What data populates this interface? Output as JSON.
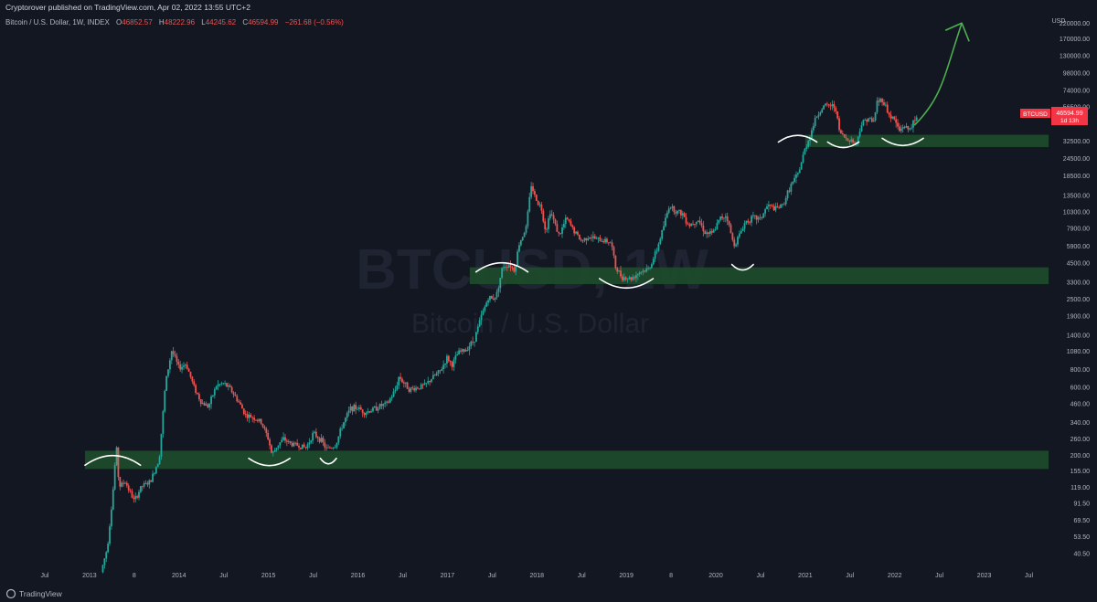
{
  "publish_line": "Cryptorover published on TradingView.com, Apr 02, 2022 13:55 UTC+2",
  "symbol_line": {
    "name": "Bitcoin / U.S. Dollar, 1W, INDEX",
    "open_label": "O",
    "open": "46852.57",
    "high_label": "H",
    "high": "48222.96",
    "low_label": "L",
    "low": "44245.62",
    "close_label": "C",
    "close": "46594.99",
    "change": "−261.68 (−0.56%)"
  },
  "watermark": {
    "symbol": "BTCUSD, 1W",
    "description": "Bitcoin / U.S. Dollar"
  },
  "price_tag": {
    "symbol": "BTCUSD",
    "price": "46594.99",
    "countdown": "1d 13h"
  },
  "footer": {
    "brand": "TradingView"
  },
  "colors": {
    "up": "#26a69a",
    "down": "#ef5350",
    "zone": "#1e4d2b",
    "arrow": "#4caf50",
    "annotation": "#ffffff",
    "background": "#131722",
    "tag": "#f23645"
  },
  "chart_data": {
    "type": "candlestick",
    "scale": "log",
    "currency": "USD",
    "y_ticks": [
      {
        "label": "220000.00",
        "value": 220000
      },
      {
        "label": "170000.00",
        "value": 170000
      },
      {
        "label": "130000.00",
        "value": 130000
      },
      {
        "label": "98000.00",
        "value": 98000
      },
      {
        "label": "74000.00",
        "value": 74000
      },
      {
        "label": "56500.00",
        "value": 56500
      },
      {
        "label": "32500.00",
        "value": 32500
      },
      {
        "label": "24500.00",
        "value": 24500
      },
      {
        "label": "18500.00",
        "value": 18500
      },
      {
        "label": "13500.00",
        "value": 13500
      },
      {
        "label": "10300.00",
        "value": 10300
      },
      {
        "label": "7900.00",
        "value": 7900
      },
      {
        "label": "5900.00",
        "value": 5900
      },
      {
        "label": "4500.00",
        "value": 4500
      },
      {
        "label": "3300.00",
        "value": 3300
      },
      {
        "label": "2500.00",
        "value": 2500
      },
      {
        "label": "1900.00",
        "value": 1900
      },
      {
        "label": "1400.00",
        "value": 1400
      },
      {
        "label": "1080.00",
        "value": 1080
      },
      {
        "label": "800.00",
        "value": 800
      },
      {
        "label": "600.00",
        "value": 600
      },
      {
        "label": "460.00",
        "value": 460
      },
      {
        "label": "340.00",
        "value": 340
      },
      {
        "label": "260.00",
        "value": 260
      },
      {
        "label": "200.00",
        "value": 200
      },
      {
        "label": "155.00",
        "value": 155
      },
      {
        "label": "119.00",
        "value": 119
      },
      {
        "label": "91.50",
        "value": 91.5
      },
      {
        "label": "69.50",
        "value": 69.5
      },
      {
        "label": "53.50",
        "value": 53.5
      },
      {
        "label": "40.50",
        "value": 40.5
      }
    ],
    "x_ticks": [
      {
        "label": "Jul",
        "t": 2012.5
      },
      {
        "label": "2013",
        "t": 2013.0
      },
      {
        "label": "8",
        "t": 2013.5
      },
      {
        "label": "2014",
        "t": 2014.0
      },
      {
        "label": "Jul",
        "t": 2014.5
      },
      {
        "label": "2015",
        "t": 2015.0
      },
      {
        "label": "Jul",
        "t": 2015.5
      },
      {
        "label": "2016",
        "t": 2016.0
      },
      {
        "label": "Jul",
        "t": 2016.5
      },
      {
        "label": "2017",
        "t": 2017.0
      },
      {
        "label": "Jul",
        "t": 2017.5
      },
      {
        "label": "2018",
        "t": 2018.0
      },
      {
        "label": "Jul",
        "t": 2018.5
      },
      {
        "label": "2019",
        "t": 2019.0
      },
      {
        "label": "8",
        "t": 2019.5
      },
      {
        "label": "2020",
        "t": 2020.0
      },
      {
        "label": "Jul",
        "t": 2020.5
      },
      {
        "label": "2021",
        "t": 2021.0
      },
      {
        "label": "Jul",
        "t": 2021.5
      },
      {
        "label": "2022",
        "t": 2022.0
      },
      {
        "label": "Jul",
        "t": 2022.5
      },
      {
        "label": "2023",
        "t": 2023.0
      },
      {
        "label": "Jul",
        "t": 2023.5
      }
    ],
    "x_range": [
      2012.0,
      2023.75
    ],
    "y_range": [
      33,
      260000
    ],
    "support_zones": [
      {
        "from_t": 2012.95,
        "to_t": 2023.72,
        "low": 160,
        "high": 215
      },
      {
        "from_t": 2017.25,
        "to_t": 2023.72,
        "low": 3200,
        "high": 4200
      },
      {
        "from_t": 2021.0,
        "to_t": 2023.72,
        "low": 29500,
        "high": 36000
      }
    ],
    "annotations": [
      {
        "shape": "arc-top",
        "t1": 2012.95,
        "t2": 2013.57,
        "price": 170
      },
      {
        "shape": "arc-bottom",
        "t1": 2014.78,
        "t2": 2015.24,
        "price": 190
      },
      {
        "shape": "arc-bottom",
        "t1": 2015.58,
        "t2": 2015.76,
        "price": 190
      },
      {
        "shape": "arc-top",
        "t1": 2017.32,
        "t2": 2017.9,
        "price": 3900
      },
      {
        "shape": "arc-bottom",
        "t1": 2018.7,
        "t2": 2019.3,
        "price": 3500
      },
      {
        "shape": "arc-bottom",
        "t1": 2020.18,
        "t2": 2020.42,
        "price": 4400
      },
      {
        "shape": "arc-top",
        "t1": 2020.7,
        "t2": 2021.13,
        "price": 32000
      },
      {
        "shape": "arc-bottom",
        "t1": 2021.25,
        "t2": 2021.6,
        "price": 32000
      },
      {
        "shape": "arc-bottom",
        "t1": 2021.86,
        "t2": 2022.32,
        "price": 34000
      }
    ],
    "projection_arrow": {
      "from": {
        "t": 2022.22,
        "price": 42000
      },
      "to": {
        "t": 2022.75,
        "price": 220000
      }
    },
    "price_path": [
      [
        2013.13,
        30
      ],
      [
        2013.2,
        45
      ],
      [
        2013.26,
        105
      ],
      [
        2013.3,
        235
      ],
      [
        2013.33,
        120
      ],
      [
        2013.4,
        130
      ],
      [
        2013.5,
        95
      ],
      [
        2013.58,
        120
      ],
      [
        2013.68,
        130
      ],
      [
        2013.78,
        190
      ],
      [
        2013.85,
        650
      ],
      [
        2013.92,
        1100
      ],
      [
        2014.0,
        820
      ],
      [
        2014.08,
        880
      ],
      [
        2014.17,
        600
      ],
      [
        2014.25,
        470
      ],
      [
        2014.33,
        440
      ],
      [
        2014.42,
        620
      ],
      [
        2014.5,
        640
      ],
      [
        2014.58,
        580
      ],
      [
        2014.67,
        470
      ],
      [
        2014.75,
        380
      ],
      [
        2014.83,
        370
      ],
      [
        2014.92,
        340
      ],
      [
        2015.0,
        260
      ],
      [
        2015.04,
        200
      ],
      [
        2015.1,
        235
      ],
      [
        2015.17,
        260
      ],
      [
        2015.25,
        240
      ],
      [
        2015.33,
        235
      ],
      [
        2015.42,
        225
      ],
      [
        2015.5,
        285
      ],
      [
        2015.58,
        260
      ],
      [
        2015.65,
        220
      ],
      [
        2015.75,
        235
      ],
      [
        2015.83,
        330
      ],
      [
        2015.92,
        430
      ],
      [
        2016.0,
        430
      ],
      [
        2016.08,
        400
      ],
      [
        2016.17,
        420
      ],
      [
        2016.25,
        445
      ],
      [
        2016.33,
        460
      ],
      [
        2016.42,
        580
      ],
      [
        2016.46,
        720
      ],
      [
        2016.5,
        660
      ],
      [
        2016.58,
        580
      ],
      [
        2016.67,
        600
      ],
      [
        2016.75,
        620
      ],
      [
        2016.83,
        700
      ],
      [
        2016.92,
        780
      ],
      [
        2017.0,
        980
      ],
      [
        2017.05,
        860
      ],
      [
        2017.12,
        1050
      ],
      [
        2017.2,
        1100
      ],
      [
        2017.3,
        1300
      ],
      [
        2017.38,
        1900
      ],
      [
        2017.46,
        2600
      ],
      [
        2017.5,
        2500
      ],
      [
        2017.55,
        2700
      ],
      [
        2017.62,
        4300
      ],
      [
        2017.7,
        4400
      ],
      [
        2017.75,
        4000
      ],
      [
        2017.8,
        6100
      ],
      [
        2017.88,
        8000
      ],
      [
        2017.94,
        16500
      ],
      [
        2017.97,
        13500
      ],
      [
        2018.05,
        11000
      ],
      [
        2018.1,
        7500
      ],
      [
        2018.15,
        10500
      ],
      [
        2018.25,
        7000
      ],
      [
        2018.33,
        9300
      ],
      [
        2018.42,
        7500
      ],
      [
        2018.5,
        6400
      ],
      [
        2018.58,
        7000
      ],
      [
        2018.67,
        6600
      ],
      [
        2018.75,
        6500
      ],
      [
        2018.83,
        6300
      ],
      [
        2018.88,
        4200
      ],
      [
        2018.95,
        3600
      ],
      [
        2019.05,
        3500
      ],
      [
        2019.15,
        3900
      ],
      [
        2019.25,
        4100
      ],
      [
        2019.33,
        5300
      ],
      [
        2019.42,
        8300
      ],
      [
        2019.48,
        11500
      ],
      [
        2019.55,
        10500
      ],
      [
        2019.63,
        10000
      ],
      [
        2019.7,
        8300
      ],
      [
        2019.8,
        9200
      ],
      [
        2019.88,
        7400
      ],
      [
        2019.96,
        7200
      ],
      [
        2020.05,
        9300
      ],
      [
        2020.12,
        9800
      ],
      [
        2020.2,
        6000
      ],
      [
        2020.25,
        6800
      ],
      [
        2020.33,
        8800
      ],
      [
        2020.42,
        9400
      ],
      [
        2020.5,
        9200
      ],
      [
        2020.58,
        11500
      ],
      [
        2020.67,
        10800
      ],
      [
        2020.75,
        11500
      ],
      [
        2020.83,
        15500
      ],
      [
        2020.92,
        19000
      ],
      [
        2021.0,
        29000
      ],
      [
        2021.05,
        35000
      ],
      [
        2021.12,
        48000
      ],
      [
        2021.2,
        57000
      ],
      [
        2021.28,
        58000
      ],
      [
        2021.34,
        56000
      ],
      [
        2021.38,
        38000
      ],
      [
        2021.45,
        34000
      ],
      [
        2021.52,
        33000
      ],
      [
        2021.57,
        31000
      ],
      [
        2021.62,
        42000
      ],
      [
        2021.7,
        48000
      ],
      [
        2021.76,
        43000
      ],
      [
        2021.8,
        61000
      ],
      [
        2021.86,
        64000
      ],
      [
        2021.9,
        57000
      ],
      [
        2021.94,
        49000
      ],
      [
        2022.0,
        46000
      ],
      [
        2022.05,
        38000
      ],
      [
        2022.1,
        42000
      ],
      [
        2022.15,
        39000
      ],
      [
        2022.2,
        43000
      ],
      [
        2022.25,
        46594.99
      ]
    ]
  }
}
